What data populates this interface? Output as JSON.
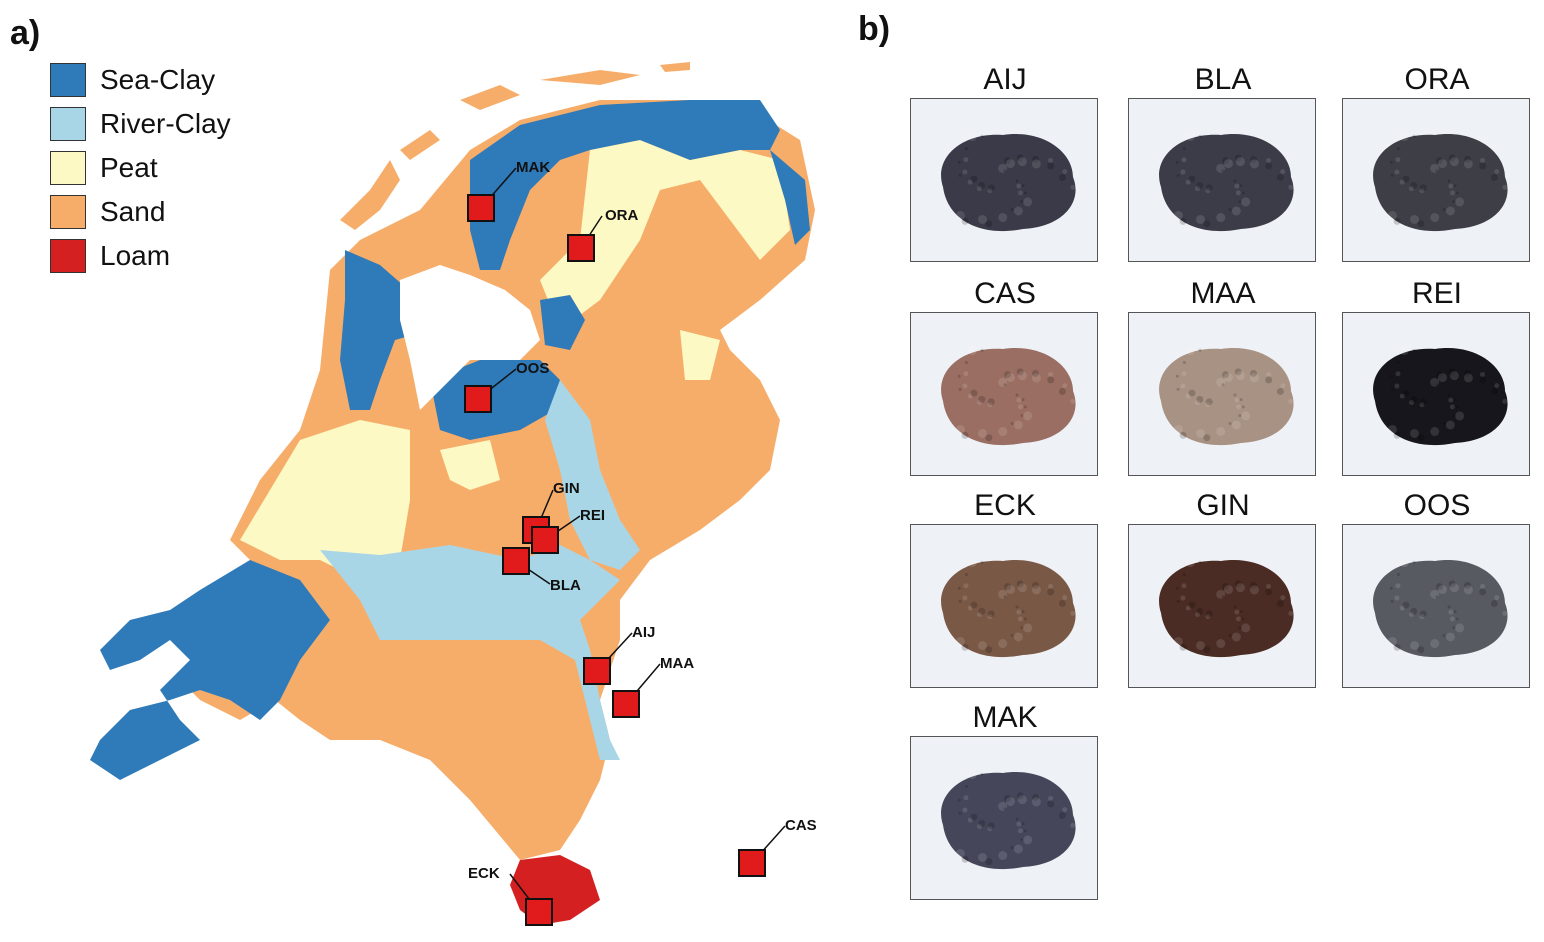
{
  "panels": {
    "a": "a)",
    "b": "b)"
  },
  "legend": [
    {
      "label": "Sea-Clay",
      "color": "#2f7ab8"
    },
    {
      "label": "River-Clay",
      "color": "#a9d6e6"
    },
    {
      "label": "Peat",
      "color": "#fdf9c4"
    },
    {
      "label": "Sand",
      "color": "#f7ad6a"
    },
    {
      "label": "Loam",
      "color": "#d42020"
    }
  ],
  "sites": [
    "MAK",
    "ORA",
    "OOS",
    "GIN",
    "REI",
    "BLA",
    "AIJ",
    "MAA",
    "CAS",
    "ECK"
  ],
  "samples": [
    {
      "label": "AIJ",
      "color": "#3a3a48"
    },
    {
      "label": "BLA",
      "color": "#3b3c48"
    },
    {
      "label": "ORA",
      "color": "#3d3e46"
    },
    {
      "label": "CAS",
      "color": "#9a6e62"
    },
    {
      "label": "MAA",
      "color": "#a89283"
    },
    {
      "label": "REI",
      "color": "#16161c"
    },
    {
      "label": "ECK",
      "color": "#7a5846"
    },
    {
      "label": "GIN",
      "color": "#4a2c24"
    },
    {
      "label": "OOS",
      "color": "#585a62"
    },
    {
      "label": "MAK",
      "color": "#45465a"
    }
  ]
}
